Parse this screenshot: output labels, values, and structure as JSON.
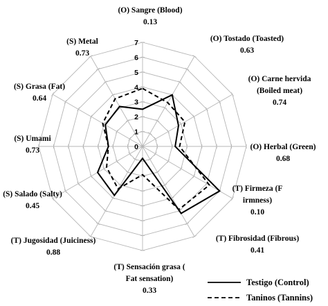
{
  "chart_data": {
    "type": "radar",
    "title": "",
    "scale": {
      "min": 0,
      "max": 7,
      "ticks": [
        0,
        1,
        2,
        3,
        4,
        5,
        6,
        7
      ]
    },
    "grid": true,
    "legend_position": "bottom-right",
    "axes": [
      {
        "label": "(O) Sangre (Blood)",
        "value": "0.13"
      },
      {
        "label": "(O) Tostado (Toasted)",
        "value": "0.63"
      },
      {
        "label": "(O) Carne hervida (Boiled meat)",
        "value": "0.74"
      },
      {
        "label": "(O) Herbal (Green)",
        "value": "0.68"
      },
      {
        "label": "(T) Firmeza (Firmness)",
        "value": "0.10"
      },
      {
        "label": "(T) Fibrosidad (Fibrous)",
        "value": "0.41"
      },
      {
        "label": "(T) Sensación grasa (Fat sensation)",
        "value": "0.33"
      },
      {
        "label": "(T) Jugosidad (Juiciness)",
        "value": "0.88"
      },
      {
        "label": "(S) Salado (Salty)",
        "value": "0.45"
      },
      {
        "label": "(S) Umami",
        "value": "0.73"
      },
      {
        "label": "(S) Grasa (Fat)",
        "value": "0.64"
      },
      {
        "label": "(S) Metal",
        "value": "0.73"
      }
    ],
    "series": [
      {
        "name": "Testigo (Control)",
        "style": "solid",
        "color": "#000000",
        "values": [
          2.5,
          4.0,
          2.8,
          2.2,
          6.0,
          5.2,
          0.8,
          3.8,
          3.5,
          2.3,
          2.9,
          3.1
        ]
      },
      {
        "name": "Taninos (Tannins)",
        "style": "dashed",
        "color": "#000000",
        "values": [
          3.9,
          3.4,
          3.3,
          2.5,
          5.2,
          4.9,
          1.9,
          3.3,
          2.8,
          2.3,
          3.1,
          3.7
        ]
      }
    ]
  }
}
